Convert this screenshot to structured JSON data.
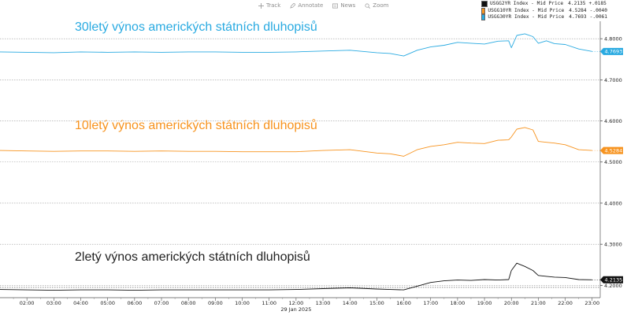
{
  "toolbar": {
    "track": "Track",
    "annotate": "Annotate",
    "news": "News",
    "zoom": "Zoom"
  },
  "legend": [
    {
      "label": "USGG2YR Index - Mid Price",
      "value": "4.2135",
      "change": "+.0185",
      "color": "#111111"
    },
    {
      "label": "USGG10YR Index - Mid Price",
      "value": "4.5284",
      "change": "-.0040",
      "color": "#f7931e"
    },
    {
      "label": "USGG30YR Index - Mid Price",
      "value": "4.7693",
      "change": "-.0061",
      "color": "#29aae1"
    }
  ],
  "annotations": {
    "y30": "30letý výnos amerických státních dluhopisů",
    "y10": "10letý výnos amerických státních dluhopisů",
    "y2": "2letý výnos amerických státních dluhopisů"
  },
  "chart_data": {
    "type": "line",
    "x_ticks": [
      "02:00",
      "03:00",
      "04:00",
      "05:00",
      "06:00",
      "07:00",
      "08:00",
      "09:00",
      "10:00",
      "11:00",
      "12:00",
      "13:00",
      "14:00",
      "15:00",
      "16:00",
      "17:00",
      "18:00",
      "19:00",
      "20:00",
      "21:00",
      "22:00",
      "23:00"
    ],
    "x_date_label": "29 Jan 2025",
    "x_range_hours": [
      1.0,
      23.3
    ],
    "y_ticks": [
      "4.2000",
      "4.3000",
      "4.4000",
      "4.5000",
      "4.6000",
      "4.7000",
      "4.8000"
    ],
    "ylim": [
      4.17,
      4.875
    ],
    "grid": "horizontal dotted",
    "legend_position": "top-right",
    "series": [
      {
        "name": "USGG30YR Index - Mid Price",
        "color": "#29aae1",
        "last_value": "4.7693",
        "x": [
          1.0,
          2.0,
          3.0,
          4.0,
          5.0,
          6.0,
          7.0,
          8.0,
          9.0,
          10.0,
          11.0,
          12.0,
          13.0,
          14.0,
          15.0,
          15.5,
          16.0,
          16.5,
          17.0,
          17.5,
          18.0,
          18.5,
          19.0,
          19.5,
          19.9,
          20.0,
          20.2,
          20.5,
          20.8,
          21.0,
          21.3,
          21.6,
          22.0,
          22.5,
          23.0
        ],
        "y": [
          4.768,
          4.767,
          4.766,
          4.768,
          4.767,
          4.768,
          4.767,
          4.768,
          4.768,
          4.767,
          4.767,
          4.768,
          4.77,
          4.772,
          4.766,
          4.764,
          4.758,
          4.772,
          4.78,
          4.784,
          4.791,
          4.789,
          4.787,
          4.794,
          4.795,
          4.778,
          4.808,
          4.812,
          4.805,
          4.789,
          4.795,
          4.788,
          4.786,
          4.775,
          4.769
        ]
      },
      {
        "name": "USGG10YR Index - Mid Price",
        "color": "#f7931e",
        "last_value": "4.5284",
        "x": [
          1.0,
          2.0,
          3.0,
          4.0,
          5.0,
          6.0,
          7.0,
          8.0,
          9.0,
          10.0,
          11.0,
          12.0,
          13.0,
          14.0,
          15.0,
          15.5,
          16.0,
          16.5,
          17.0,
          17.5,
          18.0,
          18.5,
          19.0,
          19.5,
          19.9,
          20.0,
          20.2,
          20.5,
          20.8,
          21.0,
          21.3,
          21.6,
          22.0,
          22.5,
          23.0
        ],
        "y": [
          4.528,
          4.527,
          4.526,
          4.527,
          4.527,
          4.526,
          4.527,
          4.526,
          4.526,
          4.525,
          4.525,
          4.525,
          4.528,
          4.53,
          4.522,
          4.52,
          4.514,
          4.53,
          4.538,
          4.542,
          4.548,
          4.546,
          4.545,
          4.553,
          4.554,
          4.561,
          4.58,
          4.584,
          4.578,
          4.55,
          4.548,
          4.546,
          4.542,
          4.53,
          4.528
        ]
      },
      {
        "name": "USGG2YR Index - Mid Price",
        "color": "#111111",
        "last_value": "4.2135",
        "x": [
          1.0,
          2.0,
          3.0,
          4.0,
          5.0,
          6.0,
          7.0,
          8.0,
          9.0,
          10.0,
          11.0,
          12.0,
          13.0,
          14.0,
          15.0,
          15.5,
          16.0,
          16.5,
          17.0,
          17.5,
          18.0,
          18.5,
          19.0,
          19.5,
          19.9,
          20.0,
          20.2,
          20.5,
          20.8,
          21.0,
          21.3,
          21.6,
          22.0,
          22.5,
          23.0
        ],
        "y": [
          4.19,
          4.189,
          4.188,
          4.189,
          4.189,
          4.188,
          4.189,
          4.189,
          4.189,
          4.189,
          4.189,
          4.19,
          4.192,
          4.194,
          4.191,
          4.19,
          4.189,
          4.198,
          4.207,
          4.211,
          4.213,
          4.212,
          4.214,
          4.213,
          4.214,
          4.236,
          4.254,
          4.246,
          4.236,
          4.224,
          4.222,
          4.22,
          4.219,
          4.214,
          4.2135
        ]
      }
    ],
    "reference_line": 4.195
  }
}
